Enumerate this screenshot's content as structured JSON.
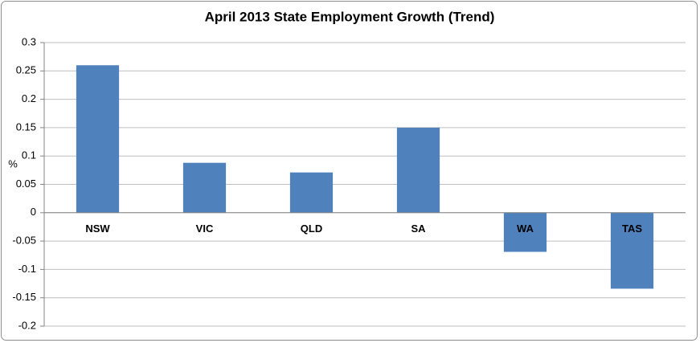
{
  "chart_data": {
    "type": "bar",
    "title": "April 2013 State Employment Growth (Trend)",
    "y_label": "%",
    "categories": [
      "NSW",
      "VIC",
      "QLD",
      "SA",
      "WA",
      "TAS"
    ],
    "values": [
      0.26,
      0.088,
      0.071,
      0.15,
      -0.069,
      -0.134
    ],
    "color": "#4f81bd",
    "ylim": [
      -0.2,
      0.3
    ],
    "yticks": [
      -0.2,
      -0.15,
      -0.1,
      -0.05,
      0,
      0.05,
      0.1,
      0.15,
      0.2,
      0.25,
      0.3
    ],
    "grid": true
  }
}
